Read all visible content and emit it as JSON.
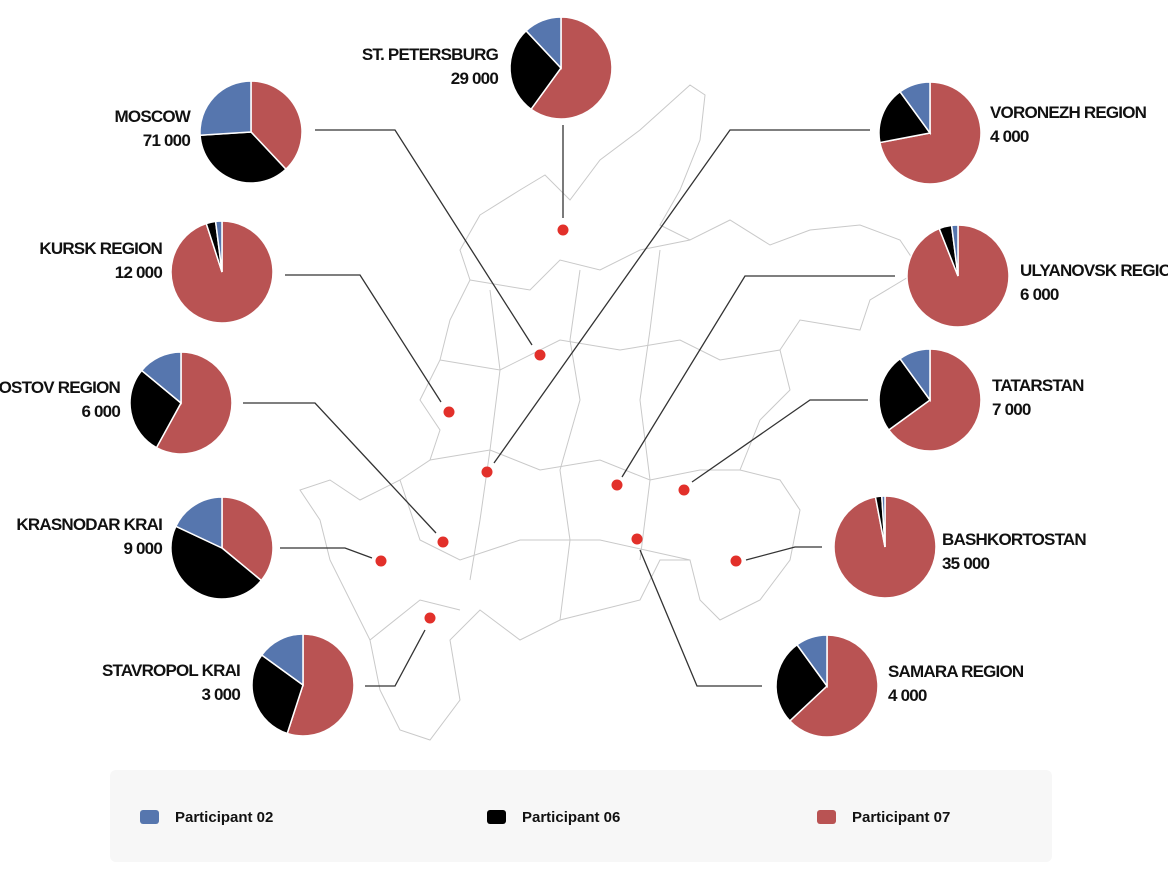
{
  "legend": [
    {
      "name": "Participant 02",
      "color": "#5676ae"
    },
    {
      "name": "Participant 06",
      "color": "#000000"
    },
    {
      "name": "Participant 07",
      "color": "#b95353"
    }
  ],
  "regions": [
    {
      "name": "ST. PETERSBURG",
      "total": "29 000",
      "shares": [
        12,
        28,
        60
      ]
    },
    {
      "name": "MOSCOW",
      "total": "71 000",
      "shares": [
        26,
        36,
        38
      ]
    },
    {
      "name": "KURSK REGION",
      "total": "12 000",
      "shares": [
        2,
        3,
        95
      ]
    },
    {
      "name": "ROSTOV REGION",
      "total": "6 000",
      "shares": [
        14,
        28,
        58
      ]
    },
    {
      "name": "KRASNODAR KRAI",
      "total": "9 000",
      "shares": [
        18,
        46,
        36
      ]
    },
    {
      "name": "STAVROPOL KRAI",
      "total": "3 000",
      "shares": [
        15,
        30,
        55
      ]
    },
    {
      "name": "VORONEZH REGION",
      "total": "4 000",
      "shares": [
        10,
        18,
        72
      ]
    },
    {
      "name": "ULYANOVSK REGION",
      "total": "6 000",
      "shares": [
        2,
        4,
        94
      ]
    },
    {
      "name": "TATARSTAN",
      "total": "7 000",
      "shares": [
        10,
        25,
        65
      ]
    },
    {
      "name": "BASHKORTOSTAN",
      "total": "35 000",
      "shares": [
        1,
        2,
        97
      ]
    },
    {
      "name": "SAMARA REGION",
      "total": "4 000",
      "shares": [
        10,
        27,
        63
      ]
    }
  ]
}
